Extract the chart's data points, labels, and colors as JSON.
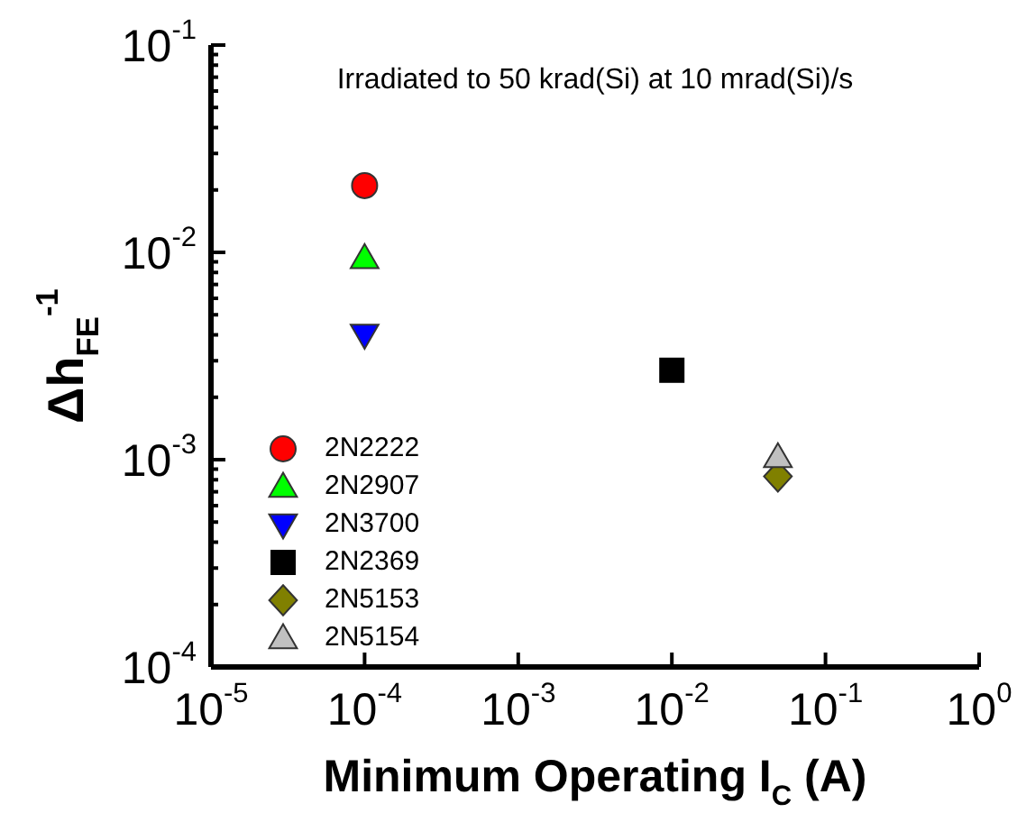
{
  "chart_data": {
    "type": "scatter",
    "xlabel": "Minimum Operating I$_{C}$ (A)",
    "ylabel": "Δh$_{FE}$$^{-1}$",
    "annotations": [
      "Irradiated to 50 krad(Si) at 10 mrad(Si)/s"
    ],
    "log": "xy",
    "legend": "left",
    "grid": false,
    "xlim": [
      1e-05,
      1
    ],
    "xticks": [
      {
        "value": 1e-05,
        "label": "10$^{-5}$"
      },
      {
        "value": 0.0001,
        "label": "10$^{-4}$"
      },
      {
        "value": 0.001,
        "label": "10$^{-3}$"
      },
      {
        "value": 0.01,
        "label": "10$^{-2}$"
      },
      {
        "value": 0.1,
        "label": "10$^{-1}$"
      },
      {
        "value": 1,
        "label": "10$^{0}$"
      }
    ],
    "ylim": [
      0.0001,
      0.1
    ],
    "yticks": [
      {
        "value": 0.0001,
        "label": "10$^{-4}$"
      },
      {
        "value": 0.0002,
        "label": null
      },
      {
        "value": 0.0003,
        "label": null
      },
      {
        "value": 0.0004,
        "label": null
      },
      {
        "value": 0.0005,
        "label": null
      },
      {
        "value": 0.0006,
        "label": null
      },
      {
        "value": 0.0007,
        "label": null
      },
      {
        "value": 0.0008,
        "label": null
      },
      {
        "value": 0.0009,
        "label": null
      },
      {
        "value": 0.001,
        "label": "10$^{-3}$"
      },
      {
        "value": 0.002,
        "label": null
      },
      {
        "value": 0.003,
        "label": null
      },
      {
        "value": 0.004,
        "label": null
      },
      {
        "value": 0.005,
        "label": null
      },
      {
        "value": 0.006,
        "label": null
      },
      {
        "value": 0.007,
        "label": null
      },
      {
        "value": 0.008,
        "label": null
      },
      {
        "value": 0.009,
        "label": null
      },
      {
        "value": 0.01,
        "label": "10$^{-2}$"
      },
      {
        "value": 0.02,
        "label": null
      },
      {
        "value": 0.03,
        "label": null
      },
      {
        "value": 0.04,
        "label": null
      },
      {
        "value": 0.05,
        "label": null
      },
      {
        "value": 0.06,
        "label": null
      },
      {
        "value": 0.07,
        "label": null
      },
      {
        "value": 0.08,
        "label": null
      },
      {
        "value": 0.09,
        "label": null
      },
      {
        "value": 0.1,
        "label": "10$^{-1}$"
      }
    ],
    "series": [
      {
        "name": "2N2222",
        "color": "#ff0000",
        "marker": "circle",
        "x": [
          0.0001
        ],
        "values": [
          0.021
        ]
      },
      {
        "name": "2N2907",
        "color": "#00ff00",
        "marker": "triangle",
        "x": [
          0.0001
        ],
        "values": [
          0.0094
        ]
      },
      {
        "name": "2N3700",
        "color": "#0000ff",
        "marker": "triangle-down",
        "x": [
          0.0001
        ],
        "values": [
          0.004
        ]
      },
      {
        "name": "2N2369",
        "color": "#000000",
        "marker": "square",
        "x": [
          0.01
        ],
        "values": [
          0.0027
        ]
      },
      {
        "name": "2N5153",
        "color": "#808000",
        "marker": "diamond",
        "x": [
          0.049
        ],
        "values": [
          0.00083
        ]
      },
      {
        "name": "2N5154",
        "color": "#c0c0c0",
        "marker": "triangle",
        "x": [
          0.049
        ],
        "values": [
          0.00103
        ]
      }
    ]
  }
}
